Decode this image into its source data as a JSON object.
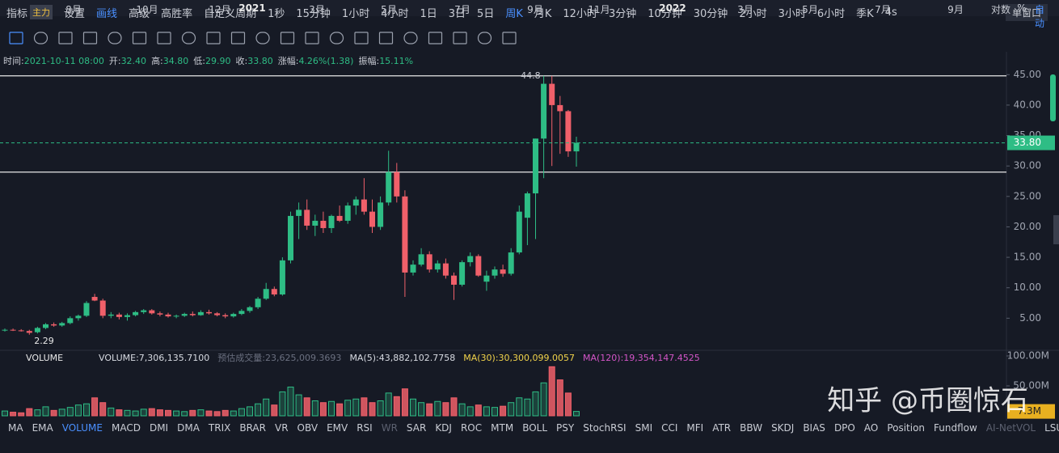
{
  "toolbar": {
    "items": [
      {
        "label": "指标",
        "badge": "主力"
      },
      {
        "label": "设置"
      },
      {
        "label": "画线",
        "active": true
      },
      {
        "label": "高级"
      },
      {
        "label": "高胜率"
      },
      {
        "label": "自定义周期"
      }
    ],
    "periods": [
      {
        "label": "1秒"
      },
      {
        "label": "15分钟"
      },
      {
        "label": "1小时"
      },
      {
        "label": "4小时"
      },
      {
        "label": "1日"
      },
      {
        "label": "3日"
      },
      {
        "label": "5日"
      },
      {
        "label": "周K",
        "active": true
      },
      {
        "label": "月K"
      },
      {
        "label": "12小时"
      },
      {
        "label": "3分钟"
      },
      {
        "label": "10分钟"
      },
      {
        "label": "30分钟"
      },
      {
        "label": "2小时"
      },
      {
        "label": "3小时"
      },
      {
        "label": "6小时"
      },
      {
        "label": "季K"
      },
      {
        "label": "4s"
      }
    ],
    "window": "单窗口"
  },
  "info": [
    {
      "label": "时间:",
      "value": "2021-10-11 08:00"
    },
    {
      "label": "开:",
      "value": "32.40"
    },
    {
      "label": "高:",
      "value": "34.80"
    },
    {
      "label": "低:",
      "value": "29.90"
    },
    {
      "label": "收:",
      "value": "33.80"
    },
    {
      "label": "涨幅:",
      "value": "4.26%(1.38)"
    },
    {
      "label": "振幅:",
      "value": "15.11%"
    }
  ],
  "chart_data": {
    "type": "candlestick",
    "up_color": "#2ebd85",
    "down_color": "#f0606a",
    "open": [
      3.0,
      3.1,
      3.0,
      2.9,
      2.7,
      3.4,
      4.0,
      3.8,
      4.2,
      5.0,
      5.4,
      8.5,
      7.9,
      5.4,
      5.6,
      5.2,
      5.5,
      6.0,
      6.3,
      5.8,
      5.6,
      5.3,
      5.4,
      5.7,
      5.5,
      6.0,
      5.8,
      5.5,
      5.3,
      5.7,
      6.2,
      6.8,
      8.2,
      9.8,
      8.9,
      14.5,
      21.8,
      22.8,
      20.2,
      21.0,
      19.8,
      21.8,
      21.0,
      23.5,
      24.5,
      22.5,
      20.0,
      24.0,
      29.0,
      25.0,
      12.5,
      13.8,
      15.5,
      13.0,
      14.0,
      12.0,
      10.5,
      14.2,
      15.2,
      11.0,
      12.0,
      13.0,
      12.3,
      15.8,
      21.5,
      25.5,
      34.5,
      43.5,
      40.0,
      39.0,
      32.4
    ],
    "high": [
      3.3,
      3.3,
      3.2,
      3.1,
      3.6,
      4.2,
      4.3,
      4.4,
      5.3,
      5.6,
      7.8,
      9.0,
      8.2,
      6.0,
      5.9,
      5.8,
      6.2,
      6.5,
      6.5,
      6.1,
      5.9,
      5.6,
      5.9,
      6.1,
      6.3,
      6.4,
      6.0,
      5.8,
      5.9,
      6.5,
      7.0,
      8.5,
      10.8,
      10.2,
      15.0,
      22.5,
      24.0,
      24.5,
      22.0,
      22.5,
      22.0,
      23.5,
      24.0,
      25.0,
      28.0,
      24.5,
      25.0,
      32.5,
      30.5,
      26.0,
      14.5,
      16.5,
      16.0,
      14.5,
      14.8,
      12.5,
      14.5,
      15.8,
      15.5,
      12.8,
      13.5,
      13.8,
      16.5,
      23.5,
      25.8,
      34.5,
      44.8,
      44.8,
      41.5,
      39.2,
      34.8
    ],
    "low": [
      2.8,
      2.9,
      2.8,
      2.29,
      2.5,
      3.2,
      3.6,
      3.6,
      4.0,
      4.6,
      5.2,
      7.8,
      5.0,
      5.0,
      4.8,
      4.6,
      5.3,
      5.7,
      5.6,
      5.3,
      5.1,
      5.0,
      5.2,
      5.3,
      5.4,
      5.6,
      5.3,
      5.0,
      5.1,
      5.5,
      5.9,
      6.5,
      8.0,
      8.6,
      8.7,
      14.0,
      18.0,
      19.5,
      18.5,
      19.0,
      19.0,
      20.8,
      20.5,
      22.0,
      22.0,
      19.0,
      19.5,
      23.5,
      24.0,
      8.5,
      12.0,
      13.5,
      12.5,
      12.5,
      11.5,
      8.0,
      10.2,
      13.5,
      11.8,
      9.5,
      11.5,
      11.8,
      12.0,
      15.5,
      17.0,
      18.0,
      28.0,
      30.0,
      32.0,
      31.5,
      29.9
    ],
    "close": [
      3.1,
      3.0,
      2.9,
      2.6,
      3.4,
      4.0,
      3.8,
      4.2,
      5.0,
      5.4,
      7.5,
      7.9,
      5.4,
      5.6,
      5.2,
      5.5,
      6.0,
      6.3,
      5.8,
      5.6,
      5.3,
      5.4,
      5.7,
      5.5,
      6.0,
      5.8,
      5.5,
      5.3,
      5.7,
      6.2,
      6.8,
      8.2,
      9.8,
      8.9,
      14.5,
      21.8,
      22.8,
      20.2,
      21.0,
      19.8,
      21.8,
      21.0,
      23.5,
      24.5,
      22.5,
      20.0,
      24.0,
      29.0,
      25.0,
      12.5,
      13.8,
      15.5,
      13.0,
      14.0,
      12.0,
      10.5,
      14.2,
      15.2,
      12.0,
      12.0,
      13.0,
      12.3,
      15.8,
      22.5,
      25.5,
      34.5,
      43.5,
      40.0,
      39.0,
      32.4,
      33.8
    ],
    "ylim": [
      0,
      46.1
    ],
    "yticks": [
      {
        "value": 45,
        "label": "45.00"
      },
      {
        "value": 40,
        "label": "40.00"
      },
      {
        "value": 35,
        "label": "35.00"
      },
      {
        "value": 30,
        "label": "30.00"
      },
      {
        "value": 25,
        "label": "25.00"
      },
      {
        "value": 20,
        "label": "20.00"
      },
      {
        "value": 15,
        "label": "15.00"
      },
      {
        "value": 10,
        "label": "10.00"
      },
      {
        "value": 5,
        "label": "5.00"
      }
    ],
    "hlines": [
      44.8,
      29.0
    ],
    "low_note": "2.29",
    "last_price": {
      "value": 33.8,
      "label": "33.80"
    },
    "volume": {
      "title": "VOLUME",
      "legend": [
        {
          "text": "VOLUME:7,306,135.7100",
          "color": "#d8dbe2"
        },
        {
          "text": "预估成交量:23,625,009.3693",
          "color": "#6b7080"
        },
        {
          "text": "MA(5):43,882,102.7758",
          "color": "#d8dbe2"
        },
        {
          "text": "MA(30):30,300,099.0057",
          "color": "#f0d24a"
        },
        {
          "text": "MA(120):19,354,147.4525",
          "color": "#d455c8"
        }
      ],
      "values": [
        8,
        6,
        5,
        12,
        10,
        15,
        9,
        11,
        14,
        18,
        20,
        30,
        22,
        13,
        10,
        9,
        8,
        11,
        12,
        10,
        9,
        8,
        7,
        9,
        10,
        8,
        7,
        9,
        8,
        12,
        15,
        20,
        28,
        18,
        40,
        48,
        35,
        30,
        25,
        22,
        24,
        20,
        26,
        28,
        30,
        22,
        25,
        38,
        32,
        45,
        28,
        22,
        20,
        24,
        22,
        30,
        20,
        15,
        18,
        15,
        14,
        16,
        22,
        30,
        28,
        40,
        55,
        82,
        60,
        38,
        7.3
      ],
      "ylim": [
        0,
        100
      ],
      "yticks": [
        {
          "value": 100,
          "label": "100.00M"
        },
        {
          "value": 50,
          "label": "50.00M"
        }
      ],
      "last": {
        "value": 7.3,
        "label": "7.3M"
      }
    },
    "x_labels": [
      "8月",
      "10月",
      "12月",
      "2021",
      "3月",
      "5月",
      "7月",
      "9月",
      "11月",
      "2022",
      "3月",
      "5月",
      "7月",
      "9月"
    ]
  },
  "indicators": [
    {
      "label": "MA"
    },
    {
      "label": "EMA"
    },
    {
      "label": "VOLUME",
      "active": true
    },
    {
      "label": "MACD"
    },
    {
      "label": "DMI"
    },
    {
      "label": "DMA"
    },
    {
      "label": "TRIX"
    },
    {
      "label": "BRAR"
    },
    {
      "label": "VR"
    },
    {
      "label": "OBV"
    },
    {
      "label": "EMV"
    },
    {
      "label": "RSI"
    },
    {
      "label": "WR",
      "muted": true
    },
    {
      "label": "SAR"
    },
    {
      "label": "KDJ"
    },
    {
      "label": "ROC"
    },
    {
      "label": "MTM"
    },
    {
      "label": "BOLL"
    },
    {
      "label": "PSY"
    },
    {
      "label": "StochRSI"
    },
    {
      "label": "SMI"
    },
    {
      "label": "CCI"
    },
    {
      "label": "MFI"
    },
    {
      "label": "ATR"
    },
    {
      "label": "BBW"
    },
    {
      "label": "SKDJ"
    },
    {
      "label": "BIAS"
    },
    {
      "label": "DPO"
    },
    {
      "label": "AO"
    },
    {
      "label": "Position"
    },
    {
      "label": "Fundflow"
    },
    {
      "label": "AI-NetVOL",
      "muted": true
    },
    {
      "label": "LSUR"
    }
  ],
  "axis_options": [
    "对数",
    "%",
    "自动"
  ],
  "watermark": "知乎 @币圈惊石"
}
